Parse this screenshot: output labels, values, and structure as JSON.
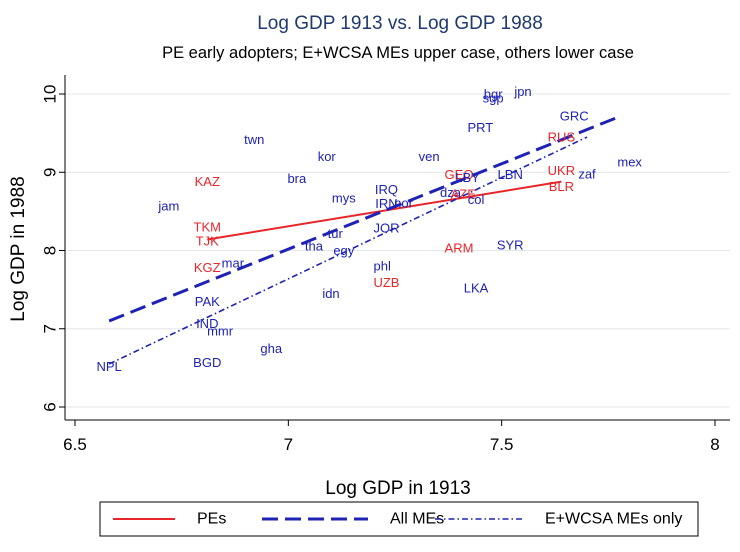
{
  "chart_data": {
    "type": "scatter",
    "title": "Log GDP 1913 vs. Log GDP 1988",
    "subtitle": "PE early adopters; E+WCSA MEs upper case, others lower case",
    "xlabel": "Log GDP in 1913",
    "ylabel": "Log GDP in 1988",
    "xlim": [
      6.5,
      8
    ],
    "ylim": [
      6,
      10
    ],
    "xticks": [
      "6.5",
      "7",
      "7.5",
      "8"
    ],
    "yticks": [
      "6",
      "7",
      "8",
      "9",
      "10"
    ],
    "grid": "horizontal",
    "legend_position": "bottom",
    "colors": {
      "pe": "#e8262a",
      "me": "#1e22b5"
    },
    "points": [
      {
        "label": "NPL",
        "x": 6.58,
        "y": 6.52,
        "group": "me"
      },
      {
        "label": "BGD",
        "x": 6.81,
        "y": 6.57,
        "group": "me"
      },
      {
        "label": "IND",
        "x": 6.81,
        "y": 7.07,
        "group": "me"
      },
      {
        "label": "mmr",
        "x": 6.84,
        "y": 6.97,
        "group": "me"
      },
      {
        "label": "PAK",
        "x": 6.81,
        "y": 7.35,
        "group": "me"
      },
      {
        "label": "gha",
        "x": 6.96,
        "y": 6.75,
        "group": "me"
      },
      {
        "label": "KGZ",
        "x": 6.81,
        "y": 7.78,
        "group": "pe"
      },
      {
        "label": "mar",
        "x": 6.87,
        "y": 7.84,
        "group": "me"
      },
      {
        "label": "TJK",
        "x": 6.81,
        "y": 8.12,
        "group": "pe"
      },
      {
        "label": "TKM",
        "x": 6.81,
        "y": 8.3,
        "group": "pe"
      },
      {
        "label": "jam",
        "x": 6.72,
        "y": 8.57,
        "group": "me"
      },
      {
        "label": "KAZ",
        "x": 6.81,
        "y": 8.88,
        "group": "pe"
      },
      {
        "label": "twn",
        "x": 6.92,
        "y": 9.42,
        "group": "me"
      },
      {
        "label": "bra",
        "x": 7.02,
        "y": 8.92,
        "group": "me"
      },
      {
        "label": "kor",
        "x": 7.09,
        "y": 9.2,
        "group": "me"
      },
      {
        "label": "mys",
        "x": 7.13,
        "y": 8.67,
        "group": "me"
      },
      {
        "label": "tha",
        "x": 7.06,
        "y": 8.06,
        "group": "me"
      },
      {
        "label": "tur",
        "x": 7.11,
        "y": 8.22,
        "group": "me"
      },
      {
        "label": "egy",
        "x": 7.13,
        "y": 8.0,
        "group": "me"
      },
      {
        "label": "idn",
        "x": 7.1,
        "y": 7.45,
        "group": "me"
      },
      {
        "label": "phl",
        "x": 7.22,
        "y": 7.8,
        "group": "me"
      },
      {
        "label": "UZB",
        "x": 7.23,
        "y": 7.59,
        "group": "pe"
      },
      {
        "label": "JOR",
        "x": 7.23,
        "y": 8.29,
        "group": "me"
      },
      {
        "label": "IRQ",
        "x": 7.23,
        "y": 8.78,
        "group": "me"
      },
      {
        "label": "IRN",
        "x": 7.23,
        "y": 8.6,
        "group": "me"
      },
      {
        "label": "nor",
        "x": 7.27,
        "y": 8.61,
        "group": "me"
      },
      {
        "label": "ven",
        "x": 7.33,
        "y": 9.2,
        "group": "me"
      },
      {
        "label": "dza",
        "x": 7.38,
        "y": 8.74,
        "group": "me"
      },
      {
        "label": "GEO",
        "x": 7.4,
        "y": 8.97,
        "group": "pe"
      },
      {
        "label": "LBY",
        "x": 7.42,
        "y": 8.93,
        "group": "me"
      },
      {
        "label": "AZE",
        "x": 7.41,
        "y": 8.72,
        "group": "pe"
      },
      {
        "label": "col",
        "x": 7.44,
        "y": 8.65,
        "group": "me"
      },
      {
        "label": "LBN",
        "x": 7.52,
        "y": 8.97,
        "group": "me"
      },
      {
        "label": "ARM",
        "x": 7.4,
        "y": 8.03,
        "group": "pe"
      },
      {
        "label": "SYR",
        "x": 7.52,
        "y": 8.07,
        "group": "me"
      },
      {
        "label": "LKA",
        "x": 7.44,
        "y": 7.52,
        "group": "me"
      },
      {
        "label": "PRT",
        "x": 7.45,
        "y": 9.57,
        "group": "me"
      },
      {
        "label": "bgr",
        "x": 7.48,
        "y": 10.0,
        "group": "me"
      },
      {
        "label": "sgp",
        "x": 7.48,
        "y": 9.95,
        "group": "me"
      },
      {
        "label": "jpn",
        "x": 7.55,
        "y": 10.03,
        "group": "me"
      },
      {
        "label": "GRC",
        "x": 7.67,
        "y": 9.72,
        "group": "me"
      },
      {
        "label": "RUS",
        "x": 7.64,
        "y": 9.45,
        "group": "pe"
      },
      {
        "label": "UKR",
        "x": 7.64,
        "y": 9.02,
        "group": "pe"
      },
      {
        "label": "zaf",
        "x": 7.7,
        "y": 8.98,
        "group": "me"
      },
      {
        "label": "BLR",
        "x": 7.64,
        "y": 8.82,
        "group": "pe"
      },
      {
        "label": "mex",
        "x": 7.8,
        "y": 9.13,
        "group": "me"
      }
    ],
    "fit_lines": [
      {
        "name": "PEs",
        "x": [
          6.81,
          7.64
        ],
        "y": [
          8.14,
          8.88
        ],
        "color": "#e8262a",
        "style": "solid"
      },
      {
        "name": "All MEs",
        "x": [
          6.58,
          7.78
        ],
        "y": [
          7.1,
          9.72
        ],
        "color": "#1e22b5",
        "style": "dash"
      },
      {
        "name": "E+WCSA MEs only",
        "x": [
          6.58,
          7.7
        ],
        "y": [
          6.55,
          9.45
        ],
        "color": "#1e22b5",
        "style": "dashdot"
      }
    ]
  }
}
